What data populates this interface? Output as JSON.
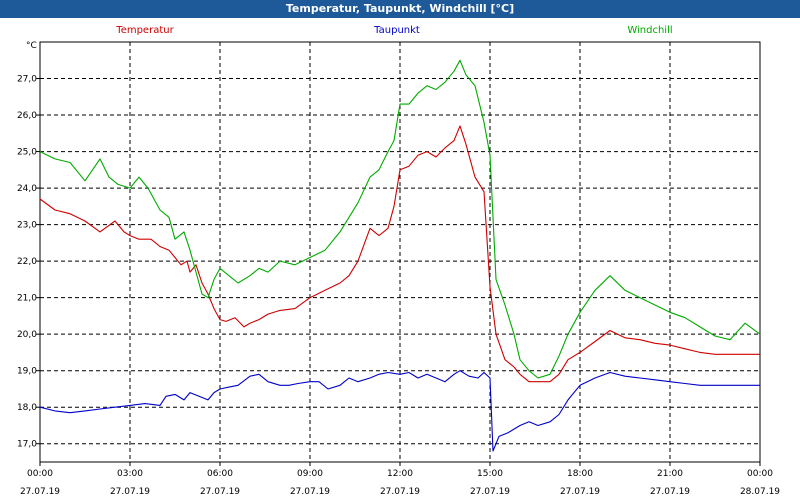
{
  "window": {
    "title": "Temperatur, Taupunkt, Windchill [°C]"
  },
  "chart_data": {
    "type": "line",
    "title": "Temperatur, Taupunkt, Windchill [°C]",
    "yunit": "°C",
    "ylim": [
      16.5,
      28.0
    ],
    "xlim": [
      0,
      24
    ],
    "grid": true,
    "legend_position": "top",
    "y_ticks": [
      {
        "value": 17,
        "label": "17,0"
      },
      {
        "value": 18,
        "label": "18,0"
      },
      {
        "value": 19,
        "label": "19,0"
      },
      {
        "value": 20,
        "label": "20,0"
      },
      {
        "value": 21,
        "label": "21,0"
      },
      {
        "value": 22,
        "label": "22,0"
      },
      {
        "value": 23,
        "label": "23,0"
      },
      {
        "value": 24,
        "label": "24,0"
      },
      {
        "value": 25,
        "label": "25,0"
      },
      {
        "value": 26,
        "label": "26,0"
      },
      {
        "value": 27,
        "label": "27,0"
      }
    ],
    "x_ticks": [
      {
        "value": 0,
        "time": "00:00",
        "date": "27.07.19"
      },
      {
        "value": 3,
        "time": "03:00",
        "date": "27.07.19"
      },
      {
        "value": 6,
        "time": "06:00",
        "date": "27.07.19"
      },
      {
        "value": 9,
        "time": "09:00",
        "date": "27.07.19"
      },
      {
        "value": 12,
        "time": "12:00",
        "date": "27.07.19"
      },
      {
        "value": 15,
        "time": "15:00",
        "date": "27.07.19"
      },
      {
        "value": 18,
        "time": "18:00",
        "date": "27.07.19"
      },
      {
        "value": 21,
        "time": "21:00",
        "date": "27.07.19"
      },
      {
        "value": 24,
        "time": "00:00",
        "date": "28.07.19"
      }
    ],
    "series": [
      {
        "name": "Temperatur",
        "color": "#d00000",
        "x": [
          0,
          0.5,
          1,
          1.5,
          2,
          2.5,
          2.8,
          3,
          3.3,
          3.5,
          3.7,
          4,
          4.3,
          4.5,
          4.7,
          4.9,
          5,
          5.2,
          5.4,
          5.6,
          5.8,
          6,
          6.2,
          6.5,
          6.8,
          7,
          7.3,
          7.6,
          8,
          8.5,
          9,
          9.5,
          10,
          10.3,
          10.6,
          11,
          11.3,
          11.6,
          11.8,
          12,
          12.3,
          12.6,
          12.9,
          13.2,
          13.5,
          13.8,
          14,
          14.2,
          14.5,
          14.8,
          15,
          15.2,
          15.5,
          15.8,
          16,
          16.3,
          16.6,
          17,
          17.3,
          17.6,
          18,
          18.5,
          19,
          19.5,
          20,
          20.5,
          21,
          21.5,
          22,
          22.5,
          23,
          23.5,
          24
        ],
        "values": [
          23.7,
          23.4,
          23.3,
          23.1,
          22.8,
          23.1,
          22.8,
          22.7,
          22.6,
          22.6,
          22.6,
          22.4,
          22.3,
          22.1,
          21.9,
          22.0,
          21.7,
          21.9,
          21.4,
          21.1,
          20.7,
          20.4,
          20.35,
          20.45,
          20.2,
          20.3,
          20.4,
          20.55,
          20.65,
          20.7,
          21.0,
          21.2,
          21.4,
          21.6,
          22.0,
          22.9,
          22.7,
          22.9,
          23.5,
          24.5,
          24.6,
          24.9,
          25.0,
          24.85,
          25.1,
          25.3,
          25.7,
          25.2,
          24.3,
          23.9,
          21.3,
          20.0,
          19.3,
          19.1,
          18.9,
          18.7,
          18.7,
          18.7,
          18.9,
          19.3,
          19.5,
          19.8,
          20.1,
          19.9,
          19.85,
          19.75,
          19.7,
          19.6,
          19.5,
          19.45,
          19.45,
          19.45,
          19.45
        ]
      },
      {
        "name": "Taupunkt",
        "color": "#0000cc",
        "x": [
          0,
          0.5,
          1,
          1.5,
          2,
          2.5,
          3,
          3.5,
          4,
          4.2,
          4.5,
          4.8,
          5,
          5.3,
          5.6,
          5.8,
          6,
          6.3,
          6.6,
          7,
          7.3,
          7.6,
          8,
          8.3,
          8.6,
          9,
          9.3,
          9.6,
          10,
          10.3,
          10.6,
          11,
          11.3,
          11.6,
          12,
          12.3,
          12.6,
          12.9,
          13.2,
          13.5,
          13.8,
          14,
          14.3,
          14.6,
          14.8,
          15,
          15.1,
          15.3,
          15.6,
          16,
          16.3,
          16.6,
          17,
          17.3,
          17.6,
          18,
          18.5,
          19,
          19.5,
          20,
          20.5,
          21,
          21.5,
          22,
          22.5,
          23,
          23.5,
          24
        ],
        "values": [
          18.0,
          17.9,
          17.85,
          17.9,
          17.95,
          18.0,
          18.05,
          18.1,
          18.05,
          18.3,
          18.35,
          18.2,
          18.4,
          18.3,
          18.2,
          18.4,
          18.5,
          18.55,
          18.6,
          18.85,
          18.9,
          18.7,
          18.6,
          18.6,
          18.65,
          18.7,
          18.7,
          18.5,
          18.6,
          18.8,
          18.7,
          18.8,
          18.9,
          18.95,
          18.9,
          18.95,
          18.8,
          18.9,
          18.8,
          18.7,
          18.9,
          19.0,
          18.85,
          18.8,
          18.95,
          18.8,
          16.8,
          17.2,
          17.3,
          17.5,
          17.6,
          17.5,
          17.6,
          17.8,
          18.2,
          18.6,
          18.8,
          18.95,
          18.85,
          18.8,
          18.75,
          18.7,
          18.65,
          18.6,
          18.6,
          18.6,
          18.6,
          18.6
        ]
      },
      {
        "name": "Windchill",
        "color": "#00aa00",
        "x": [
          0,
          0.5,
          1,
          1.5,
          2,
          2.3,
          2.6,
          3,
          3.3,
          3.6,
          4,
          4.3,
          4.5,
          4.8,
          5,
          5.2,
          5.4,
          5.6,
          5.8,
          6,
          6.3,
          6.6,
          7,
          7.3,
          7.6,
          8,
          8.5,
          9,
          9.5,
          10,
          10.3,
          10.6,
          11,
          11.3,
          11.6,
          11.8,
          12,
          12.3,
          12.6,
          12.9,
          13.2,
          13.5,
          13.8,
          14,
          14.2,
          14.5,
          14.8,
          15,
          15.2,
          15.5,
          15.8,
          16,
          16.3,
          16.6,
          17,
          17.3,
          17.6,
          18,
          18.5,
          19,
          19.5,
          20,
          20.5,
          21,
          21.5,
          22,
          22.5,
          23,
          23.5,
          24
        ],
        "values": [
          25.0,
          24.8,
          24.7,
          24.2,
          24.8,
          24.3,
          24.1,
          24.0,
          24.3,
          24.0,
          23.4,
          23.2,
          22.6,
          22.8,
          22.3,
          21.7,
          21.1,
          21.0,
          21.5,
          21.8,
          21.6,
          21.4,
          21.6,
          21.8,
          21.7,
          22.0,
          21.9,
          22.1,
          22.3,
          22.8,
          23.2,
          23.6,
          24.3,
          24.5,
          25.0,
          25.3,
          26.3,
          26.3,
          26.6,
          26.8,
          26.7,
          26.9,
          27.2,
          27.5,
          27.1,
          26.8,
          25.8,
          24.9,
          21.5,
          20.8,
          20.0,
          19.3,
          19.0,
          18.8,
          18.9,
          19.4,
          20.0,
          20.6,
          21.2,
          21.6,
          21.2,
          21.0,
          20.8,
          20.6,
          20.45,
          20.2,
          19.95,
          19.85,
          20.3,
          20.0
        ]
      }
    ]
  }
}
